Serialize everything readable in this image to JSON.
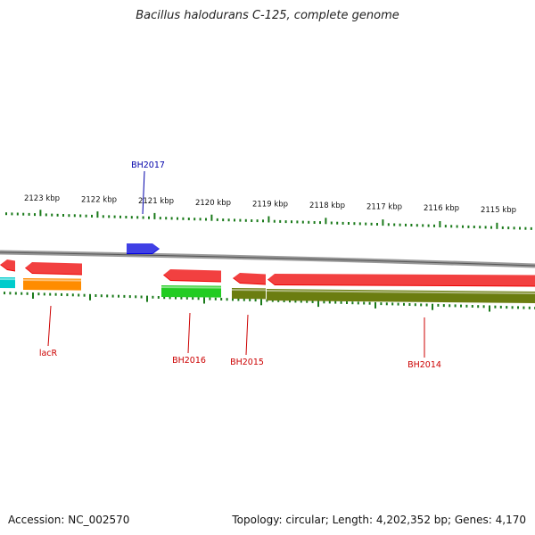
{
  "title": "Bacillus halodurans C-125, complete genome",
  "footer": {
    "accession": "Accession: NC_002570",
    "topology": "Topology: circular; Length: 4,202,352 bp; Genes: 4,170"
  },
  "colors": {
    "backbone": "#8a8a8a",
    "tick": "#1a7a1a",
    "label_forward": "#0000aa",
    "label_reverse": "#cc0000"
  },
  "ruler": [
    {
      "kbp": 2123,
      "label": "2123 kbp"
    },
    {
      "kbp": 2122,
      "label": "2122 kbp"
    },
    {
      "kbp": 2121,
      "label": "2121 kbp"
    },
    {
      "kbp": 2120,
      "label": "2120 kbp"
    },
    {
      "kbp": 2119,
      "label": "2119 kbp"
    },
    {
      "kbp": 2118,
      "label": "2118 kbp"
    },
    {
      "kbp": 2117,
      "label": "2117 kbp"
    },
    {
      "kbp": 2116,
      "label": "2116 kbp"
    },
    {
      "kbp": 2115,
      "label": "2115 kbp"
    }
  ],
  "genes": [
    {
      "name": "BH2017",
      "strand": "forward",
      "color": "#0000dd"
    },
    {
      "name": "lacR",
      "strand": "reverse",
      "color": "#ee0000"
    },
    {
      "name": "BH2016",
      "strand": "reverse",
      "color": "#ee0000"
    },
    {
      "name": "BH2015",
      "strand": "reverse",
      "color": "#ee0000"
    },
    {
      "name": "BH2014",
      "strand": "reverse",
      "color": "#ee0000"
    }
  ],
  "cog_colors": {
    "lacR": "#ff8c00",
    "BH2016": "#22cc22",
    "BH2015": "#6b7d10",
    "BH2014": "#6b7d10",
    "edge": "#00cccc"
  }
}
